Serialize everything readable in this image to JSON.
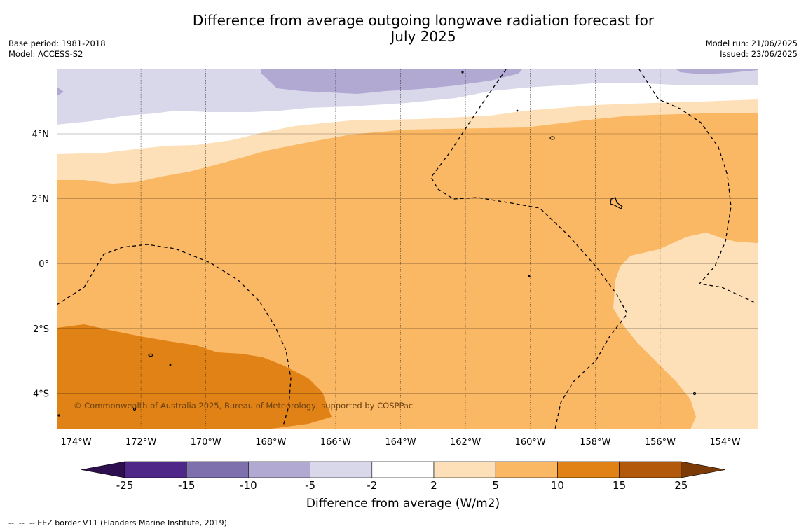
{
  "title": {
    "line1": "Difference from average outgoing longwave radiation forecast for",
    "line2": "July 2025"
  },
  "meta_left": {
    "base_period": "Base period: 1981-2018",
    "model": "Model: ACCESS-S2"
  },
  "meta_right": {
    "model_run": "Model run: 21/06/2025",
    "issued": "Issued: 23/06/2025"
  },
  "map": {
    "lat_labels": [
      "4°N",
      "2°N",
      "0°",
      "2°S",
      "4°S"
    ],
    "lon_labels": [
      "174°W",
      "172°W",
      "170°W",
      "168°W",
      "166°W",
      "164°W",
      "162°W",
      "160°W",
      "158°W",
      "156°W",
      "154°W"
    ],
    "copyright": "© Commonwealth of Australia 2025, Bureau of Meteorology, supported by COSPPac"
  },
  "colorbar": {
    "ticks": [
      "-25",
      "-15",
      "-10",
      "-5",
      "-2",
      "2",
      "5",
      "10",
      "15",
      "25"
    ],
    "colors": [
      "#4f2788",
      "#7e70ad",
      "#b1a9d2",
      "#d9d8ea",
      "#ffffff",
      "#fde0b7",
      "#fbb864",
      "#e08215",
      "#b2590c"
    ],
    "under_color": "#2d0e4e",
    "over_color": "#7b3a06",
    "label": "Difference from average (W/m2)"
  },
  "footer": "--  --  -- EEZ border V11 (Flanders Marine Institute, 2019)."
}
